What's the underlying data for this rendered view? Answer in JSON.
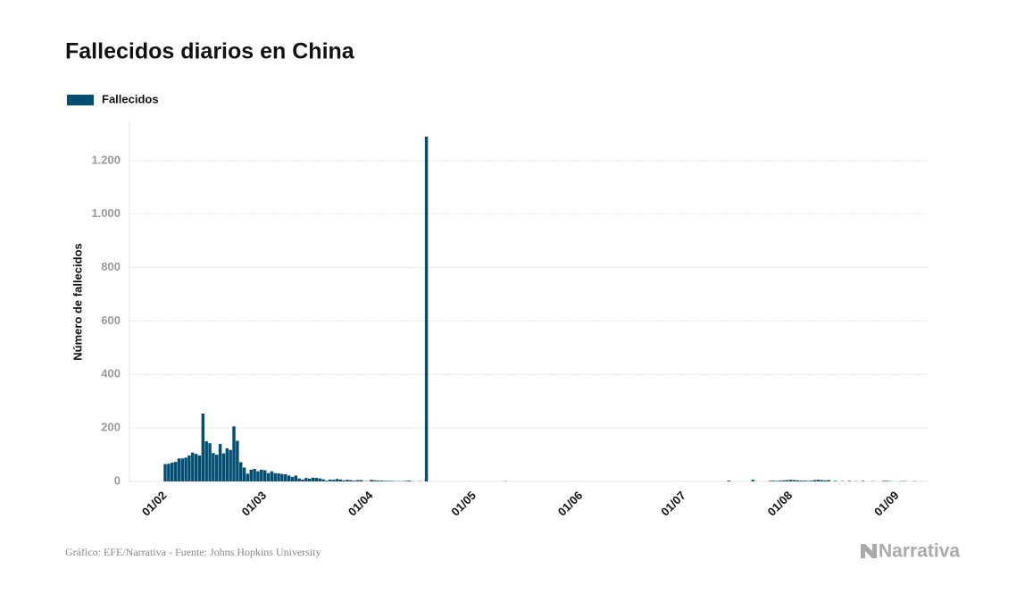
{
  "chart_data": {
    "type": "bar",
    "title": "Fallecidos diarios en China",
    "y_label": "Número de fallecidos",
    "source": "Gráfico: EFE/Narrativa - Fuente: Johns Hopkins University",
    "brand": "Narrativa",
    "grid": true,
    "ylim": [
      0,
      1350
    ],
    "yticks": [
      0,
      200,
      400,
      600,
      800,
      {
        "value": 1000,
        "label": "1.000"
      },
      {
        "value": 1200,
        "label": "1.200"
      }
    ],
    "categories": [
      "01/02",
      null,
      null,
      null,
      null,
      null,
      null,
      null,
      null,
      null,
      null,
      null,
      null,
      null,
      null,
      null,
      null,
      null,
      null,
      null,
      null,
      null,
      null,
      null,
      null,
      null,
      null,
      null,
      null,
      "01/03",
      null,
      null,
      null,
      null,
      null,
      null,
      null,
      null,
      null,
      null,
      null,
      null,
      null,
      null,
      null,
      null,
      null,
      null,
      null,
      null,
      null,
      null,
      null,
      null,
      null,
      null,
      null,
      null,
      null,
      null,
      "01/04",
      null,
      null,
      null,
      null,
      null,
      null,
      null,
      null,
      null,
      null,
      null,
      null,
      null,
      null,
      null,
      null,
      null,
      null,
      null,
      null,
      null,
      null,
      null,
      null,
      null,
      null,
      null,
      null,
      null,
      "01/05",
      null,
      null,
      null,
      null,
      null,
      null,
      null,
      null,
      null,
      null,
      null,
      null,
      null,
      null,
      null,
      null,
      null,
      null,
      null,
      null,
      null,
      null,
      null,
      null,
      null,
      null,
      null,
      null,
      null,
      null,
      "01/06",
      null,
      null,
      null,
      null,
      null,
      null,
      null,
      null,
      null,
      null,
      null,
      null,
      null,
      null,
      null,
      null,
      null,
      null,
      null,
      null,
      null,
      null,
      null,
      null,
      null,
      null,
      null,
      null,
      null,
      "01/07",
      null,
      null,
      null,
      null,
      null,
      null,
      null,
      null,
      null,
      null,
      null,
      null,
      null,
      null,
      null,
      null,
      null,
      null,
      null,
      null,
      null,
      null,
      null,
      null,
      null,
      null,
      null,
      null,
      null,
      null,
      "01/08",
      null,
      null,
      null,
      null,
      null,
      null,
      null,
      null,
      null,
      null,
      null,
      null,
      null,
      null,
      null,
      null,
      null,
      null,
      null,
      null,
      null,
      null,
      null,
      null,
      null,
      null,
      null,
      null,
      null,
      null,
      "01/09",
      null,
      null,
      null,
      null,
      null,
      null
    ],
    "series": [
      {
        "name": "Fallecidos",
        "color": "#044e72",
        "values": [
          65,
          66,
          70,
          73,
          86,
          86,
          89,
          97,
          108,
          103,
          97,
          254,
          150,
          143,
          106,
          100,
          140,
          105,
          124,
          118,
          206,
          152,
          72,
          52,
          29,
          44,
          47,
          38,
          44,
          42,
          31,
          38,
          31,
          30,
          28,
          27,
          22,
          17,
          22,
          11,
          7,
          13,
          10,
          14,
          13,
          11,
          8,
          3,
          7,
          6,
          9,
          7,
          4,
          6,
          5,
          3,
          5,
          5,
          1,
          1,
          6,
          4,
          3,
          3,
          2,
          2,
          2,
          1,
          1,
          1,
          2,
          3,
          1,
          0,
          1,
          0,
          1290,
          0,
          0,
          0,
          0,
          0,
          0,
          0,
          0,
          0,
          0,
          0,
          0,
          0,
          0,
          0,
          0,
          0,
          0,
          0,
          0,
          0,
          0,
          1,
          0,
          0,
          0,
          0,
          0,
          0,
          0,
          0,
          0,
          0,
          0,
          0,
          0,
          0,
          0,
          0,
          0,
          0,
          0,
          0,
          0,
          0,
          0,
          0,
          0,
          0,
          0,
          0,
          0,
          0,
          0,
          0,
          0,
          0,
          0,
          0,
          0,
          0,
          0,
          0,
          0,
          0,
          0,
          0,
          0,
          0,
          0,
          0,
          0,
          0,
          0,
          0,
          0,
          0,
          0,
          0,
          0,
          0,
          0,
          0,
          0,
          0,
          0,
          0,
          3,
          0,
          0,
          0,
          0,
          0,
          0,
          6,
          0,
          0,
          0,
          0,
          2,
          3,
          2,
          3,
          4,
          5,
          6,
          5,
          4,
          3,
          3,
          2,
          3,
          5,
          6,
          5,
          4,
          5,
          0,
          2,
          0,
          1,
          0,
          2,
          0,
          1,
          0,
          2,
          0,
          0,
          1,
          0,
          0,
          2,
          2,
          1,
          0,
          0,
          1,
          1,
          0,
          0,
          1,
          0
        ]
      }
    ]
  }
}
